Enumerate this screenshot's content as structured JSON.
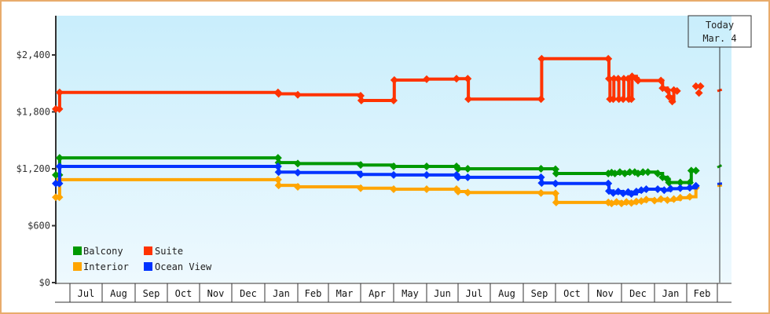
{
  "chart_data": {
    "type": "line",
    "subtype": "step",
    "title": "",
    "xlabel": "",
    "ylabel": "",
    "ylim": [
      0,
      2880
    ],
    "y_ticks": [
      {
        "value": 0,
        "label": "$0"
      },
      {
        "value": 600,
        "label": "$600"
      },
      {
        "value": 1200,
        "label": "$1,200"
      },
      {
        "value": 1800,
        "label": "$1,800"
      },
      {
        "value": 2400,
        "label": "$2,400"
      }
    ],
    "x_months": [
      "Jul",
      "Aug",
      "Sep",
      "Oct",
      "Nov",
      "Dec",
      "Jan",
      "Feb",
      "Mar",
      "Apr",
      "May",
      "Jun",
      "Jul",
      "Aug",
      "Sep",
      "Oct",
      "Nov",
      "Dec",
      "Jan",
      "Feb"
    ],
    "grid": false,
    "legend_position": "bottom-left inside",
    "today_marker": {
      "line1": "Today",
      "line2": "Mar. 4"
    },
    "series": [
      {
        "name": "Balcony",
        "color": "#009900",
        "points": [
          [
            0.0,
            1135
          ],
          [
            0.25,
            1135
          ],
          [
            0.27,
            1315
          ],
          [
            7.4,
            1315
          ],
          [
            7.42,
            1265
          ],
          [
            8.0,
            1255
          ],
          [
            10.0,
            1240
          ],
          [
            11.0,
            1225
          ],
          [
            12.0,
            1225
          ],
          [
            12.95,
            1225
          ],
          [
            13.0,
            1200
          ],
          [
            13.3,
            1200
          ],
          [
            15.55,
            1200
          ],
          [
            16.0,
            1195
          ],
          [
            16.02,
            1150
          ],
          [
            17.6,
            1150
          ],
          [
            17.7,
            1160
          ],
          [
            17.8,
            1150
          ],
          [
            17.95,
            1165
          ],
          [
            18.1,
            1150
          ],
          [
            18.25,
            1165
          ],
          [
            18.4,
            1165
          ],
          [
            18.5,
            1150
          ],
          [
            18.65,
            1165
          ],
          [
            18.8,
            1165
          ],
          [
            19.1,
            1150
          ],
          [
            19.25,
            1110
          ],
          [
            19.4,
            1090
          ],
          [
            19.45,
            1055
          ],
          [
            19.8,
            1055
          ],
          [
            20.1,
            1055
          ],
          [
            20.15,
            1180
          ],
          [
            20.3,
            1180
          ]
        ],
        "future": [
          [
            21.0,
            1215
          ],
          [
            21.15,
            1240
          ]
        ]
      },
      {
        "name": "Suite",
        "color": "#ff3300",
        "points": [
          [
            0.0,
            1830
          ],
          [
            0.25,
            1830
          ],
          [
            0.27,
            2005
          ],
          [
            7.4,
            2005
          ],
          [
            7.42,
            1990
          ],
          [
            8.0,
            1980
          ],
          [
            10.0,
            1970
          ],
          [
            10.02,
            1920
          ],
          [
            11.0,
            1920
          ],
          [
            11.02,
            2135
          ],
          [
            12.0,
            2145
          ],
          [
            12.95,
            2150
          ],
          [
            13.3,
            2150
          ],
          [
            13.32,
            1935
          ],
          [
            15.55,
            1935
          ],
          [
            15.57,
            2360
          ],
          [
            17.6,
            2360
          ],
          [
            17.62,
            2150
          ],
          [
            17.65,
            1935
          ],
          [
            17.75,
            1935
          ],
          [
            17.77,
            2150
          ],
          [
            17.9,
            2150
          ],
          [
            17.92,
            1935
          ],
          [
            18.05,
            1935
          ],
          [
            18.07,
            2150
          ],
          [
            18.2,
            2150
          ],
          [
            18.22,
            1935
          ],
          [
            18.3,
            1935
          ],
          [
            18.32,
            2175
          ],
          [
            18.45,
            2150
          ],
          [
            18.5,
            2130
          ],
          [
            19.2,
            2130
          ],
          [
            19.25,
            2050
          ],
          [
            19.4,
            2030
          ],
          [
            19.45,
            1960
          ],
          [
            19.55,
            1910
          ],
          [
            19.6,
            2030
          ],
          [
            19.7,
            2020
          ]
        ],
        "future_points": [
          [
            20.3,
            2070
          ],
          [
            20.45,
            2070
          ],
          [
            20.4,
            2000
          ]
        ],
        "future": [
          [
            21.0,
            2020
          ],
          [
            21.15,
            2035
          ]
        ]
      },
      {
        "name": "Interior",
        "color": "#ffa500",
        "points": [
          [
            0.0,
            900
          ],
          [
            0.25,
            900
          ],
          [
            0.27,
            1085
          ],
          [
            7.4,
            1085
          ],
          [
            7.42,
            1025
          ],
          [
            8.0,
            1010
          ],
          [
            10.0,
            995
          ],
          [
            11.0,
            985
          ],
          [
            12.0,
            985
          ],
          [
            12.95,
            985
          ],
          [
            13.0,
            960
          ],
          [
            13.3,
            950
          ],
          [
            15.55,
            945
          ],
          [
            16.0,
            940
          ],
          [
            16.02,
            845
          ],
          [
            17.6,
            845
          ],
          [
            17.7,
            835
          ],
          [
            17.85,
            850
          ],
          [
            18.0,
            835
          ],
          [
            18.15,
            850
          ],
          [
            18.3,
            840
          ],
          [
            18.45,
            855
          ],
          [
            18.6,
            860
          ],
          [
            18.75,
            875
          ],
          [
            19.0,
            865
          ],
          [
            19.2,
            880
          ],
          [
            19.4,
            870
          ],
          [
            19.6,
            880
          ],
          [
            19.8,
            895
          ],
          [
            20.1,
            905
          ],
          [
            20.3,
            1000
          ]
        ],
        "future": [
          [
            21.0,
            1020
          ],
          [
            21.15,
            1025
          ]
        ]
      },
      {
        "name": "Ocean View",
        "color": "#0033ff",
        "points": [
          [
            0.0,
            1045
          ],
          [
            0.25,
            1045
          ],
          [
            0.27,
            1225
          ],
          [
            7.4,
            1225
          ],
          [
            7.42,
            1165
          ],
          [
            8.0,
            1160
          ],
          [
            10.0,
            1140
          ],
          [
            11.0,
            1135
          ],
          [
            12.0,
            1135
          ],
          [
            12.95,
            1135
          ],
          [
            13.0,
            1110
          ],
          [
            13.3,
            1110
          ],
          [
            15.55,
            1110
          ],
          [
            15.57,
            1050
          ],
          [
            16.0,
            1045
          ],
          [
            17.6,
            1045
          ],
          [
            17.62,
            965
          ],
          [
            17.75,
            945
          ],
          [
            17.9,
            960
          ],
          [
            18.05,
            940
          ],
          [
            18.2,
            955
          ],
          [
            18.3,
            935
          ],
          [
            18.45,
            960
          ],
          [
            18.6,
            975
          ],
          [
            18.75,
            985
          ],
          [
            19.1,
            985
          ],
          [
            19.3,
            975
          ],
          [
            19.5,
            990
          ],
          [
            19.8,
            995
          ],
          [
            20.1,
            1000
          ],
          [
            20.3,
            1020
          ]
        ],
        "future": [
          [
            21.0,
            1040
          ],
          [
            21.15,
            1045
          ]
        ]
      }
    ]
  },
  "legend": {
    "items": [
      {
        "label": "Balcony",
        "color": "#009900"
      },
      {
        "label": "Suite",
        "color": "#ff3300"
      },
      {
        "label": "Interior",
        "color": "#ffa500"
      },
      {
        "label": "Ocean View",
        "color": "#0033ff"
      }
    ]
  },
  "axis": {
    "y_labels": [
      "$2,400",
      "$1,800",
      "$1,200",
      "$600",
      "$0"
    ],
    "x_labels": [
      "Jul",
      "Aug",
      "Sep",
      "Oct",
      "Nov",
      "Dec",
      "Jan",
      "Feb",
      "Mar",
      "Apr",
      "May",
      "Jun",
      "Jul",
      "Aug",
      "Sep",
      "Oct",
      "Nov",
      "Dec",
      "Jan",
      "Feb"
    ]
  },
  "today": {
    "line1": "Today",
    "line2": "Mar. 4"
  }
}
